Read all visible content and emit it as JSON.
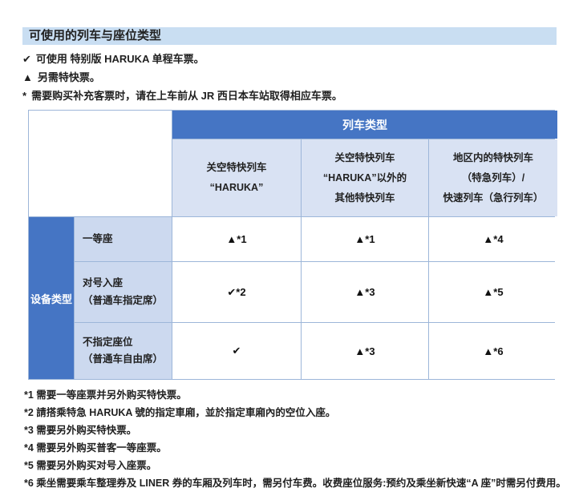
{
  "page": {
    "title": "可使用的列车与座位类型",
    "notes": [
      {
        "symbol": "✔",
        "text": "可使用 特别版 HARUKA 单程车票。"
      },
      {
        "symbol": "▲",
        "text": "另需特快票。"
      },
      {
        "symbol": "*",
        "text": "需要购买补充客票时，请在上车前从 JR 西日本车站取得相应车票。"
      }
    ]
  },
  "table": {
    "col_group_header": "列车类型",
    "row_group_header": "设备类型",
    "columns": [
      {
        "lines": [
          "关空特快列车",
          "“HARUKA”"
        ]
      },
      {
        "lines": [
          "关空特快列车",
          "“HARUKA”以外的",
          "其他特快列车"
        ]
      },
      {
        "lines": [
          "地区内的特快列车",
          "（特急列车）/",
          "快速列车（急行列车）"
        ]
      }
    ],
    "rows": [
      {
        "label_lines": [
          "一等座"
        ],
        "cells": [
          "▲*1",
          "▲*1",
          "▲*4"
        ]
      },
      {
        "label_lines": [
          "对号入座",
          "（普通车指定席）"
        ],
        "cells": [
          "✔*2",
          "▲*3",
          "▲*5"
        ]
      },
      {
        "label_lines": [
          "不指定座位",
          "（普通车自由席）"
        ],
        "cells": [
          "✔",
          "▲*3",
          "▲*6"
        ]
      }
    ]
  },
  "footnotes": [
    "*1 需要一等座票并另外购买特快票。",
    "*2 請搭乘特急 HARUKA 號的指定車廂，並於指定車廂內的空位入座。",
    "*3 需要另外购买特快票。",
    "*4 需要另外购买普客一等座票。",
    "*5 需要另外购买对号入座票。",
    "*6 乘坐需要乘车整理券及 LINER 券的车厢及列车时，需另付车费。收费座位服务:预约及乘坐新快速“A 座”时需另付费用。"
  ],
  "colors": {
    "accent_blue": "#4575c4",
    "title_bar_bg": "#c9def2",
    "column_header_bg": "#d9e2f3",
    "row_label_bg": "#ccd9ef",
    "grid_border": "#9db6d9"
  },
  "symbols": {
    "usable_check": "✔",
    "express_ticket_triangle": "▲"
  }
}
